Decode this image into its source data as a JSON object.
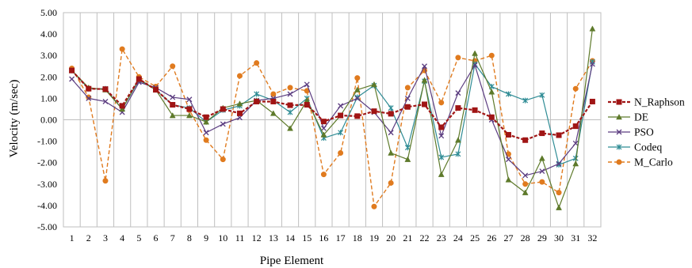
{
  "chart_data": {
    "type": "line",
    "xlabel": "Pipe Element",
    "ylabel": "Velocity (m/sec)",
    "ylim": [
      -5,
      5
    ],
    "ytick_step": 1,
    "ytick_labels": [
      "5.00",
      "4.00",
      "3.00",
      "2.00",
      "1.00",
      "0.00",
      "-1.00",
      "-2.00",
      "-3.00",
      "-4.00",
      "-5.00"
    ],
    "categories": [
      "1",
      "2",
      "3",
      "4",
      "5",
      "6",
      "7",
      "8",
      "9",
      "10",
      "11",
      "12",
      "13",
      "14",
      "15",
      "16",
      "17",
      "18",
      "19",
      "20",
      "21",
      "22",
      "23",
      "24",
      "25",
      "26",
      "27",
      "28",
      "29",
      "30",
      "31",
      "32"
    ],
    "grid": "vertical",
    "legend_position": "right",
    "series": [
      {
        "name": "N_Raphson",
        "color": "#a01515",
        "dash": "4,2",
        "marker": "square",
        "width": 2.2,
        "values": [
          2.3,
          1.45,
          1.43,
          0.65,
          1.9,
          1.4,
          0.7,
          0.5,
          0.12,
          0.5,
          0.3,
          0.85,
          0.85,
          0.68,
          0.7,
          -0.08,
          0.2,
          0.17,
          0.4,
          0.28,
          0.6,
          0.72,
          -0.35,
          0.55,
          0.45,
          0.12,
          -0.7,
          -0.95,
          -0.63,
          -0.72,
          -0.3,
          0.85
        ]
      },
      {
        "name": "DE",
        "color": "#5e7a2b",
        "dash": "",
        "marker": "triangle",
        "width": 1.2,
        "values": [
          2.3,
          1.5,
          1.4,
          0.5,
          1.9,
          1.4,
          0.2,
          0.2,
          -0.1,
          0.55,
          0.75,
          0.9,
          0.3,
          -0.4,
          0.9,
          -0.7,
          0.2,
          1.4,
          1.65,
          -1.55,
          -1.85,
          1.85,
          -2.55,
          -0.95,
          3.1,
          1.3,
          -2.8,
          -3.4,
          -1.8,
          -4.1,
          -2.05,
          4.25
        ]
      },
      {
        "name": "PSO",
        "color": "#5b3c80",
        "dash": "",
        "marker": "x",
        "width": 1.2,
        "values": [
          1.9,
          1.0,
          0.85,
          0.35,
          1.75,
          1.5,
          1.05,
          0.95,
          -0.6,
          -0.2,
          0.1,
          0.9,
          1.0,
          1.2,
          1.65,
          -0.4,
          0.65,
          1.0,
          0.35,
          -0.6,
          1.0,
          2.5,
          -0.75,
          1.25,
          2.55,
          0.0,
          -1.85,
          -2.6,
          -2.4,
          -2.05,
          -1.1,
          2.6
        ]
      },
      {
        "name": "Codeq",
        "color": "#2f8c95",
        "dash": "",
        "marker": "star",
        "width": 1.2,
        "values": [
          2.3,
          1.45,
          1.45,
          0.5,
          1.85,
          1.4,
          0.7,
          0.55,
          -0.1,
          0.45,
          0.65,
          1.2,
          0.9,
          0.35,
          1.0,
          -0.85,
          -0.6,
          1.05,
          1.6,
          0.55,
          -1.3,
          1.8,
          -1.75,
          -1.6,
          2.6,
          1.55,
          1.2,
          0.9,
          1.15,
          -2.1,
          -1.8,
          2.7
        ]
      },
      {
        "name": "M_Carlo",
        "color": "#e07b1f",
        "dash": "5,3",
        "marker": "circle",
        "width": 1.4,
        "values": [
          2.4,
          1.05,
          -2.85,
          3.3,
          2.0,
          1.55,
          2.5,
          0.45,
          -0.95,
          -1.85,
          2.05,
          2.65,
          1.2,
          1.5,
          1.35,
          -2.55,
          -1.55,
          1.95,
          -4.05,
          -2.95,
          1.5,
          2.3,
          0.8,
          2.9,
          2.75,
          3.0,
          -1.6,
          -3.0,
          -2.9,
          -3.4,
          1.45,
          2.75
        ]
      }
    ]
  }
}
